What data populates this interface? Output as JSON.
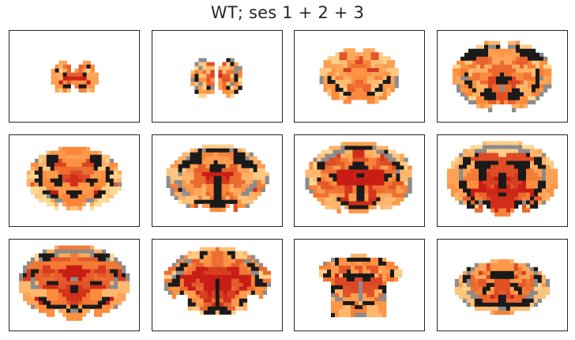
{
  "figure": {
    "title": "WT; ses 1 + 2 + 3"
  },
  "colors": {
    "background": "#ffffff",
    "frame": "#262626",
    "heat_low": "#fde2a0",
    "heat_mid": "#fd8d3c",
    "heat_high": "#c81d14",
    "anatomy_dark": "#1a1a1a",
    "anatomy_gray": "#8c8c8c"
  },
  "panels": [
    {
      "id": "slice-1",
      "shape": "olfactory",
      "scale": 0.42,
      "heat": 0.55,
      "dark": 0.3
    },
    {
      "id": "slice-2",
      "shape": "olfactory",
      "scale": 0.48,
      "heat": 0.35,
      "dark": 0.55
    },
    {
      "id": "slice-3",
      "shape": "frontal",
      "scale": 0.72,
      "heat": 0.4,
      "dark": 0.15
    },
    {
      "id": "slice-4",
      "shape": "frontal",
      "scale": 0.9,
      "heat": 0.4,
      "dark": 0.4
    },
    {
      "id": "slice-5",
      "shape": "coronal",
      "scale": 0.86,
      "heat": 0.35,
      "dark": 0.4
    },
    {
      "id": "slice-6",
      "shape": "coronal",
      "scale": 0.92,
      "heat": 0.45,
      "dark": 0.45
    },
    {
      "id": "slice-7",
      "shape": "coronal",
      "scale": 0.98,
      "heat": 0.7,
      "dark": 0.45
    },
    {
      "id": "slice-8",
      "shape": "coronal",
      "scale": 1.0,
      "heat": 0.75,
      "dark": 0.45
    },
    {
      "id": "slice-9",
      "shape": "coronal",
      "scale": 1.0,
      "heat": 0.75,
      "dark": 0.4
    },
    {
      "id": "slice-10",
      "shape": "caudal",
      "scale": 0.96,
      "heat": 0.7,
      "dark": 0.45
    },
    {
      "id": "slice-11",
      "shape": "cerebellar",
      "scale": 0.8,
      "heat": 0.45,
      "dark": 0.4
    },
    {
      "id": "slice-12",
      "shape": "hindbrain",
      "scale": 0.86,
      "heat": 0.45,
      "dark": 0.55
    }
  ]
}
